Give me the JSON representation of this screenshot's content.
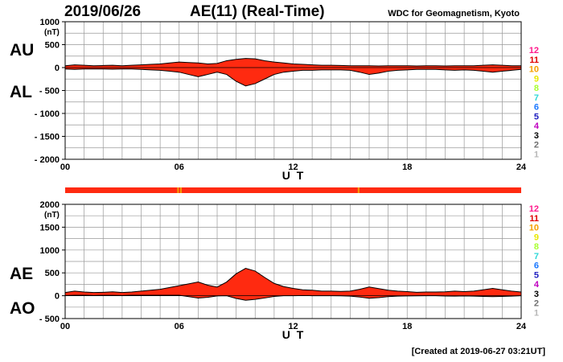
{
  "header": {
    "date": "2019/06/26",
    "title": "AE(11) (Real-Time)",
    "source": "WDC for Geomagnetism, Kyoto"
  },
  "footer": {
    "created": "[Created at 2019-06-27 03:21UT]"
  },
  "station_counts": [
    "12",
    "11",
    "10",
    "9",
    "8",
    "7",
    "6",
    "5",
    "4",
    "3",
    "2",
    "1"
  ],
  "station_colors": [
    "#ff1a8c",
    "#e00000",
    "#f5a000",
    "#e8e800",
    "#a8ff30",
    "#30d8d8",
    "#1a78ff",
    "#2020c0",
    "#c000c0",
    "#000000",
    "#707070",
    "#b8b8b8"
  ],
  "colors": {
    "fill": "#ff2a10",
    "line": "#000000",
    "grid": "#999999",
    "coverage_bar": "#ff2a10",
    "coverage_gap": "#f5a000"
  },
  "chart_data": [
    {
      "type": "area",
      "panel": "AU/AL",
      "labels": {
        "upper": "AU",
        "lower": "AL"
      },
      "xlabel": "U T",
      "ylabel": "(nT)",
      "xlim": [
        0,
        24
      ],
      "ylim": [
        -2000,
        1000
      ],
      "x_ticks": [
        "00",
        "06",
        "12",
        "18",
        "24"
      ],
      "y_ticks": [
        "1000",
        "500",
        "0",
        "- 500",
        "- 1000",
        "- 1500",
        "- 2000"
      ],
      "y_tick_values": [
        1000,
        500,
        0,
        -500,
        -1000,
        -1500,
        -2000
      ],
      "grid": true,
      "series": [
        {
          "name": "AU",
          "x": [
            0,
            0.5,
            1,
            1.5,
            2,
            2.5,
            3,
            3.5,
            4,
            4.5,
            5,
            5.5,
            6,
            6.5,
            7,
            7.5,
            8,
            8.5,
            9,
            9.5,
            10,
            10.5,
            11,
            11.5,
            12,
            12.5,
            13,
            13.5,
            14,
            14.5,
            15,
            15.5,
            16,
            16.5,
            17,
            17.5,
            18,
            18.5,
            19,
            19.5,
            20,
            20.5,
            21,
            21.5,
            22,
            22.5,
            23,
            23.5,
            24
          ],
          "values": [
            40,
            60,
            50,
            40,
            45,
            50,
            40,
            50,
            60,
            70,
            80,
            100,
            120,
            110,
            100,
            80,
            90,
            150,
            180,
            200,
            190,
            150,
            120,
            100,
            80,
            70,
            60,
            50,
            50,
            45,
            40,
            40,
            40,
            35,
            40,
            40,
            40,
            35,
            40,
            40,
            35,
            40,
            40,
            40,
            50,
            60,
            50,
            40,
            40
          ]
        },
        {
          "name": "AL",
          "x": [
            0,
            0.5,
            1,
            1.5,
            2,
            2.5,
            3,
            3.5,
            4,
            4.5,
            5,
            5.5,
            6,
            6.5,
            7,
            7.5,
            8,
            8.5,
            9,
            9.5,
            10,
            10.5,
            11,
            11.5,
            12,
            12.5,
            13,
            13.5,
            14,
            14.5,
            15,
            15.5,
            16,
            16.5,
            17,
            17.5,
            18,
            18.5,
            19,
            19.5,
            20,
            20.5,
            21,
            21.5,
            22,
            22.5,
            23,
            23.5,
            24
          ],
          "values": [
            -30,
            -40,
            -30,
            -30,
            -30,
            -35,
            -30,
            -30,
            -40,
            -50,
            -60,
            -80,
            -100,
            -150,
            -200,
            -150,
            -100,
            -150,
            -300,
            -400,
            -350,
            -250,
            -150,
            -100,
            -80,
            -60,
            -60,
            -50,
            -50,
            -50,
            -60,
            -100,
            -150,
            -120,
            -80,
            -60,
            -50,
            -40,
            -40,
            -40,
            -50,
            -60,
            -50,
            -60,
            -80,
            -100,
            -80,
            -60,
            -40
          ]
        }
      ]
    },
    {
      "type": "area",
      "panel": "AE/AO",
      "labels": {
        "upper": "AE",
        "lower": "AO"
      },
      "xlabel": "U T",
      "ylabel": "(nT)",
      "xlim": [
        0,
        24
      ],
      "ylim": [
        -500,
        2000
      ],
      "x_ticks": [
        "00",
        "06",
        "12",
        "18",
        "24"
      ],
      "y_ticks": [
        "2000",
        "1500",
        "1000",
        "500",
        "0",
        "- 500"
      ],
      "y_tick_values": [
        2000,
        1500,
        1000,
        500,
        0,
        -500
      ],
      "grid": true,
      "series": [
        {
          "name": "AE",
          "x": [
            0,
            0.5,
            1,
            1.5,
            2,
            2.5,
            3,
            3.5,
            4,
            4.5,
            5,
            5.5,
            6,
            6.5,
            7,
            7.5,
            8,
            8.5,
            9,
            9.5,
            10,
            10.5,
            11,
            11.5,
            12,
            12.5,
            13,
            13.5,
            14,
            14.5,
            15,
            15.5,
            16,
            16.5,
            17,
            17.5,
            18,
            18.5,
            19,
            19.5,
            20,
            20.5,
            21,
            21.5,
            22,
            22.5,
            23,
            23.5,
            24
          ],
          "values": [
            70,
            100,
            80,
            70,
            75,
            85,
            70,
            80,
            100,
            120,
            140,
            180,
            220,
            260,
            300,
            230,
            190,
            300,
            480,
            600,
            540,
            400,
            270,
            200,
            160,
            130,
            120,
            100,
            100,
            95,
            100,
            140,
            190,
            155,
            120,
            100,
            90,
            75,
            80,
            80,
            85,
            100,
            90,
            100,
            130,
            160,
            130,
            100,
            80
          ]
        },
        {
          "name": "AO",
          "x": [
            0,
            0.5,
            1,
            1.5,
            2,
            2.5,
            3,
            3.5,
            4,
            4.5,
            5,
            5.5,
            6,
            6.5,
            7,
            7.5,
            8,
            8.5,
            9,
            9.5,
            10,
            10.5,
            11,
            11.5,
            12,
            12.5,
            13,
            13.5,
            14,
            14.5,
            15,
            15.5,
            16,
            16.5,
            17,
            17.5,
            18,
            18.5,
            19,
            19.5,
            20,
            20.5,
            21,
            21.5,
            22,
            22.5,
            23,
            23.5,
            24
          ],
          "values": [
            5,
            10,
            10,
            5,
            8,
            8,
            5,
            10,
            10,
            10,
            10,
            10,
            10,
            -20,
            -50,
            -35,
            -5,
            0,
            -60,
            -100,
            -80,
            -50,
            -15,
            0,
            0,
            5,
            0,
            0,
            0,
            -3,
            -10,
            -30,
            -55,
            -43,
            -20,
            -10,
            -5,
            -3,
            0,
            0,
            -8,
            -10,
            -5,
            -10,
            -15,
            -20,
            -15,
            -10,
            0
          ]
        }
      ]
    }
  ]
}
